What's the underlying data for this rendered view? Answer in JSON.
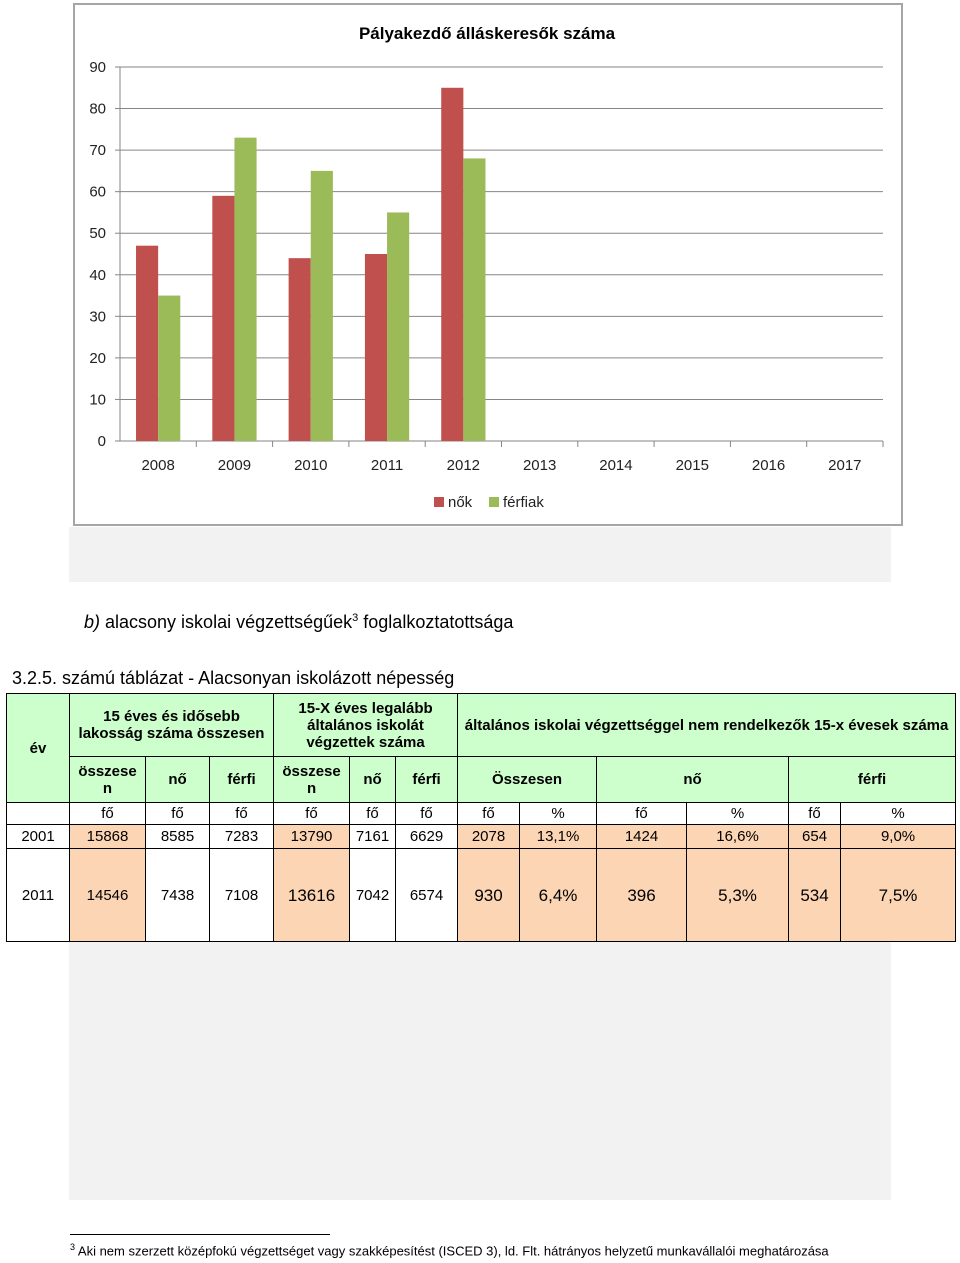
{
  "chart_data": {
    "type": "bar",
    "title": "Pályakezdő álláskeresők száma",
    "categories": [
      "2008",
      "2009",
      "2010",
      "2011",
      "2012",
      "2013",
      "2014",
      "2015",
      "2016",
      "2017"
    ],
    "series": [
      {
        "name": "nők",
        "color": "#c0504d",
        "values": [
          47,
          59,
          44,
          45,
          85,
          null,
          null,
          null,
          null,
          null
        ]
      },
      {
        "name": "férfiak",
        "color": "#9bbb59",
        "values": [
          35,
          73,
          65,
          55,
          68,
          null,
          null,
          null,
          null,
          null
        ]
      }
    ],
    "ylim": [
      0,
      90
    ],
    "yticks": [
      0,
      10,
      20,
      30,
      40,
      50,
      60,
      70,
      80,
      90
    ],
    "grid": true,
    "legend": "bottom"
  },
  "subheading": {
    "letter": "b)",
    "text": " alacsony iskolai végzettségűek",
    "sup": "3",
    "tail": " foglalkoztatottsága"
  },
  "table_caption": "3.2.5. számú táblázat - Alacsonyan iskolázott népesség",
  "table": {
    "h_ev": "év",
    "h_group1": "15 éves és idősebb lakosság száma összesen",
    "h_group2": "15-X éves legalább általános iskolát végzettek száma",
    "h_group3": "általános iskolai végzettséggel nem rendelkezők 15-x évesek száma",
    "h_osszesen": "összese n",
    "h_no": "nő",
    "h_ferfi": "férfi",
    "h_osszesen2": "Összesen",
    "units": [
      "fő",
      "fő",
      "fő",
      "fő",
      "fő",
      "fő",
      "fő",
      "%",
      "fő",
      "%",
      "fő",
      "%"
    ],
    "rows": [
      {
        "ev": "2001",
        "cells": [
          "15868",
          "8585",
          "7283",
          "13790",
          "7161",
          "6629",
          "2078",
          "13,1%",
          "1424",
          "16,6%",
          "654",
          "9,0%"
        ]
      },
      {
        "ev": "2011",
        "cells": [
          "14546",
          "7438",
          "7108",
          "13616",
          "7042",
          "6574",
          "930",
          "6,4%",
          "396",
          "5,3%",
          "534",
          "7,5%"
        ]
      }
    ]
  },
  "footnote": {
    "sup": "3",
    "text": " Aki nem szerzett középfokú végzettséget vagy szakképesítést (ISCED 3), ld. Flt. hátrányos helyzetű munkavállalói meghatározása"
  }
}
